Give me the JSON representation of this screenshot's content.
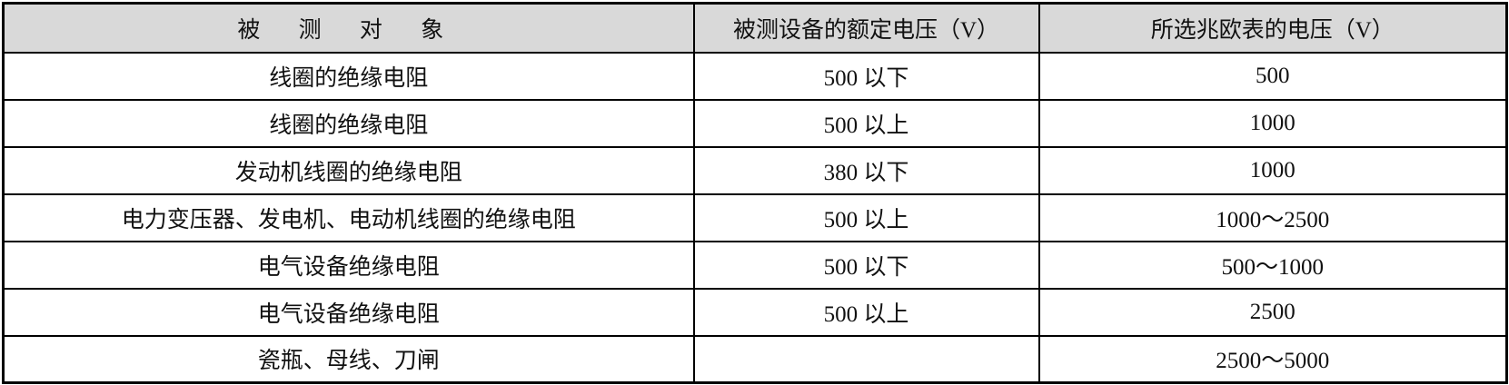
{
  "table": {
    "headers": [
      "被 测 对 象",
      "被测设备的额定电压（V）",
      "所选兆欧表的电压（V）"
    ],
    "header_background": "#d9d9d9",
    "rows": [
      [
        "线圈的绝缘电阻",
        "500 以下",
        "500"
      ],
      [
        "线圈的绝缘电阻",
        "500 以上",
        "1000"
      ],
      [
        "发动机线圈的绝缘电阻",
        "380 以下",
        "1000"
      ],
      [
        "电力变压器、发电机、电动机线圈的绝缘电阻",
        "500 以上",
        "1000～2500"
      ],
      [
        "电气设备绝缘电阻",
        "500 以下",
        "500～1000"
      ],
      [
        "电气设备绝缘电阻",
        "500 以上",
        "2500"
      ],
      [
        "瓷瓶、母线、刀闸",
        "",
        "2500～5000"
      ]
    ]
  }
}
